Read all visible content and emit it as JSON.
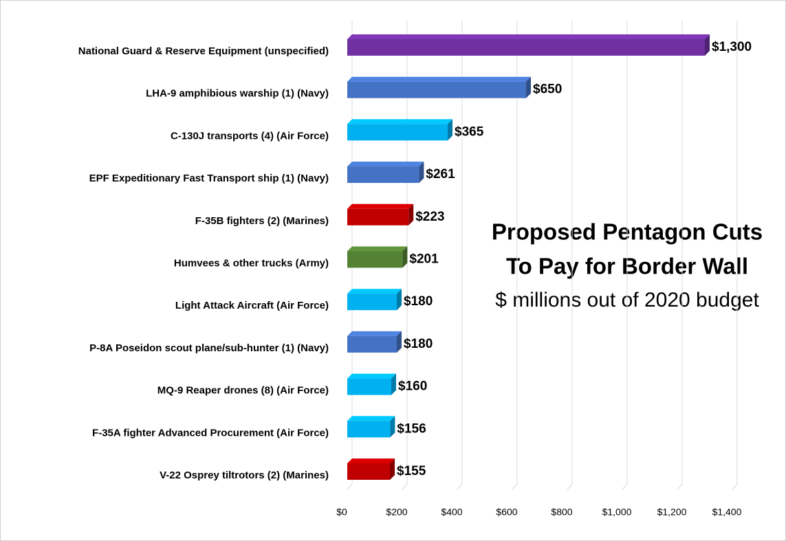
{
  "chart_data": {
    "type": "bar",
    "orientation": "horizontal",
    "title": [
      "Proposed Pentagon Cuts",
      "To Pay for Border Wall"
    ],
    "subtitle": "$ millions out of 2020 budget",
    "categories": [
      "National Guard & Reserve Equipment (unspecified)",
      "LHA-9 amphibious warship (1) (Navy)",
      "C-130J transports (4) (Air Force)",
      "EPF Expeditionary Fast Transport ship (1) (Navy)",
      "F-35B fighters (2) (Marines)",
      "Humvees & other trucks (Army)",
      "Light Attack Aircraft (Air Force)",
      "P-8A Poseidon scout plane/sub-hunter (1) (Navy)",
      "MQ-9 Reaper drones (8) (Air Force)",
      "F-35A fighter Advanced Procurement (Air Force)",
      "V-22 Osprey tiltrotors (2) (Marines)"
    ],
    "values": [
      1300,
      650,
      365,
      261,
      223,
      201,
      180,
      180,
      160,
      156,
      155
    ],
    "value_labels": [
      "$1,300",
      "$650",
      "$365",
      "$261",
      "$223",
      "$201",
      "$180",
      "$180",
      "$160",
      "$156",
      "$155"
    ],
    "colors": [
      "#7030a0",
      "#4472c4",
      "#00b0f0",
      "#4472c4",
      "#c00000",
      "#548235",
      "#00b0f0",
      "#4472c4",
      "#00b0f0",
      "#00b0f0",
      "#c00000"
    ],
    "xlim": [
      0,
      1400
    ],
    "xticks": [
      {
        "value": 0,
        "label": "$0"
      },
      {
        "value": 200,
        "label": "$200"
      },
      {
        "value": 400,
        "label": "$400"
      },
      {
        "value": 600,
        "label": "$600"
      },
      {
        "value": 800,
        "label": "$800"
      },
      {
        "value": 1000,
        "label": "$1,000"
      },
      {
        "value": 1200,
        "label": "$1,200"
      },
      {
        "value": 1400,
        "label": "$1,400"
      }
    ],
    "grid": true
  }
}
